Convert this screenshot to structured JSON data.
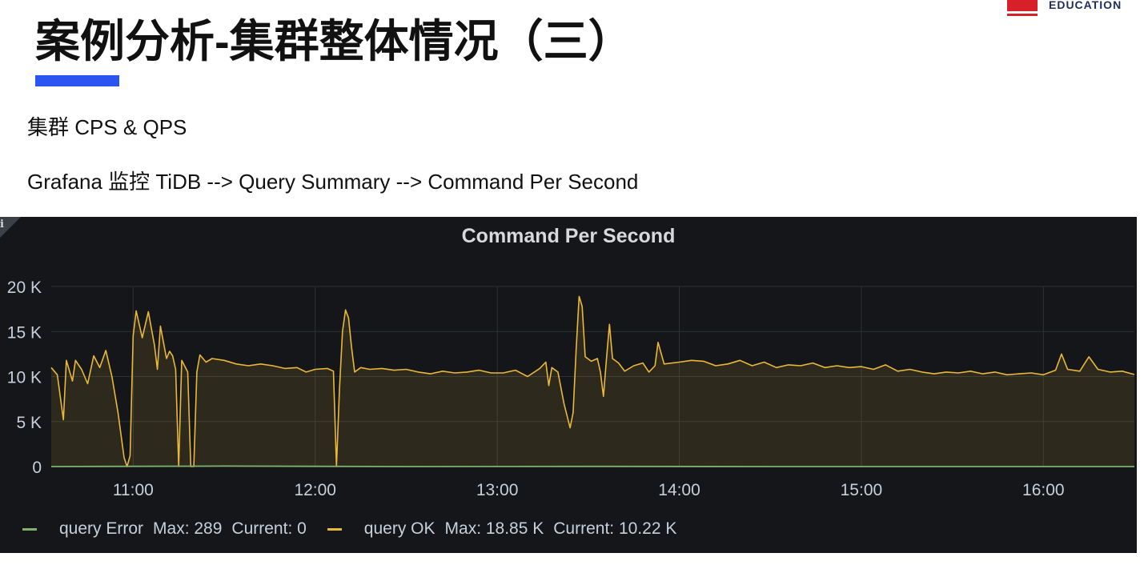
{
  "brand": {
    "text": "EDUCATION"
  },
  "slide": {
    "title": "案例分析-集群整体情况（三）",
    "subtitle": "集群 CPS & QPS",
    "path": "Grafana 监控 TiDB --> Query Summary --> Command Per Second"
  },
  "panel": {
    "title": "Command Per Second",
    "info_icon": "i"
  },
  "colors": {
    "accent_bar": "#2b55f0",
    "panel_bg": "#141619",
    "query_ok": "#eab839",
    "query_error": "#7eb26d",
    "grid": "#2c3235",
    "axis_text": "#c7d0d9"
  },
  "legend": [
    {
      "name": "query Error",
      "max_label": "Max: 289",
      "current_label": "Current: 0",
      "color": "#7eb26d"
    },
    {
      "name": "query OK",
      "max_label": "Max: 18.85 K",
      "current_label": "Current: 10.22 K",
      "color": "#eab839"
    }
  ],
  "chart_data": {
    "type": "area",
    "title": "Command Per Second",
    "xlabel": "",
    "ylabel": "",
    "xlim": [
      "10:33",
      "16:30"
    ],
    "ylim": [
      0,
      20000
    ],
    "y_ticks": [
      {
        "value": 0,
        "label": "0"
      },
      {
        "value": 5000,
        "label": "5 K"
      },
      {
        "value": 10000,
        "label": "10 K"
      },
      {
        "value": 15000,
        "label": "15 K"
      },
      {
        "value": 20000,
        "label": "20 K"
      }
    ],
    "x_ticks": [
      "11:00",
      "12:00",
      "13:00",
      "14:00",
      "15:00",
      "16:00"
    ],
    "grid": true,
    "legend_position": "bottom-left",
    "series": [
      {
        "name": "query OK",
        "max": 18850,
        "current": 10220,
        "points": [
          [
            "10:33",
            11000
          ],
          [
            "10:35",
            10200
          ],
          [
            "10:37",
            5200
          ],
          [
            "10:38",
            11800
          ],
          [
            "10:40",
            9500
          ],
          [
            "10:41",
            11800
          ],
          [
            "10:43",
            10800
          ],
          [
            "10:45",
            9200
          ],
          [
            "10:47",
            12300
          ],
          [
            "10:49",
            11000
          ],
          [
            "10:51",
            12900
          ],
          [
            "10:53",
            10000
          ],
          [
            "10:55",
            6000
          ],
          [
            "10:57",
            1000
          ],
          [
            "10:58",
            0
          ],
          [
            "10:59",
            1200
          ],
          [
            "11:00",
            14500
          ],
          [
            "11:01",
            17300
          ],
          [
            "11:03",
            14300
          ],
          [
            "11:05",
            17200
          ],
          [
            "11:07",
            13500
          ],
          [
            "11:08",
            10800
          ],
          [
            "11:09",
            15600
          ],
          [
            "11:11",
            12000
          ],
          [
            "11:12",
            12800
          ],
          [
            "11:13",
            12300
          ],
          [
            "11:14",
            10800
          ],
          [
            "11:15",
            0
          ],
          [
            "11:16",
            11800
          ],
          [
            "11:18",
            10500
          ],
          [
            "11:19",
            0
          ],
          [
            "11:20",
            0
          ],
          [
            "11:21",
            10500
          ],
          [
            "11:22",
            12400
          ],
          [
            "11:24",
            11600
          ],
          [
            "11:26",
            12000
          ],
          [
            "11:30",
            11800
          ],
          [
            "11:34",
            11400
          ],
          [
            "11:38",
            11200
          ],
          [
            "11:42",
            11400
          ],
          [
            "11:46",
            11200
          ],
          [
            "11:50",
            10900
          ],
          [
            "11:54",
            11000
          ],
          [
            "11:57",
            10500
          ],
          [
            "12:00",
            10800
          ],
          [
            "12:04",
            10900
          ],
          [
            "12:06",
            10600
          ],
          [
            "12:07",
            0
          ],
          [
            "12:08",
            8500
          ],
          [
            "12:09",
            15000
          ],
          [
            "12:10",
            17400
          ],
          [
            "12:11",
            16500
          ],
          [
            "12:12",
            13200
          ],
          [
            "12:13",
            10500
          ],
          [
            "12:15",
            11000
          ],
          [
            "12:18",
            10800
          ],
          [
            "12:22",
            10900
          ],
          [
            "12:26",
            10700
          ],
          [
            "12:30",
            10800
          ],
          [
            "12:34",
            10500
          ],
          [
            "12:38",
            10300
          ],
          [
            "12:42",
            10600
          ],
          [
            "12:46",
            10400
          ],
          [
            "12:50",
            10500
          ],
          [
            "12:54",
            10700
          ],
          [
            "12:58",
            10400
          ],
          [
            "13:02",
            10400
          ],
          [
            "13:06",
            10700
          ],
          [
            "13:10",
            10000
          ],
          [
            "13:14",
            10900
          ],
          [
            "13:16",
            11600
          ],
          [
            "13:17",
            9000
          ],
          [
            "13:18",
            11000
          ],
          [
            "13:20",
            10500
          ],
          [
            "13:22",
            7000
          ],
          [
            "13:24",
            4300
          ],
          [
            "13:25",
            6000
          ],
          [
            "13:26",
            13000
          ],
          [
            "13:27",
            18900
          ],
          [
            "13:28",
            17800
          ],
          [
            "13:29",
            12200
          ],
          [
            "13:31",
            11700
          ],
          [
            "13:33",
            12000
          ],
          [
            "13:34",
            10500
          ],
          [
            "13:35",
            7800
          ],
          [
            "13:36",
            12000
          ],
          [
            "13:37",
            15800
          ],
          [
            "13:38",
            12000
          ],
          [
            "13:40",
            11500
          ],
          [
            "13:42",
            10600
          ],
          [
            "13:45",
            11200
          ],
          [
            "13:48",
            11500
          ],
          [
            "13:50",
            10500
          ],
          [
            "13:52",
            11200
          ],
          [
            "13:53",
            13800
          ],
          [
            "13:55",
            11400
          ],
          [
            "14:00",
            11600
          ],
          [
            "14:04",
            11800
          ],
          [
            "14:08",
            11700
          ],
          [
            "14:12",
            11200
          ],
          [
            "14:16",
            11400
          ],
          [
            "14:20",
            11800
          ],
          [
            "14:24",
            11200
          ],
          [
            "14:28",
            11600
          ],
          [
            "14:32",
            11000
          ],
          [
            "14:36",
            11300
          ],
          [
            "14:40",
            11200
          ],
          [
            "14:44",
            11500
          ],
          [
            "14:48",
            11000
          ],
          [
            "14:52",
            11200
          ],
          [
            "14:56",
            11000
          ],
          [
            "15:00",
            11100
          ],
          [
            "15:04",
            10800
          ],
          [
            "15:08",
            11300
          ],
          [
            "15:12",
            10600
          ],
          [
            "15:16",
            10800
          ],
          [
            "15:20",
            10500
          ],
          [
            "15:24",
            10300
          ],
          [
            "15:28",
            10500
          ],
          [
            "15:32",
            10400
          ],
          [
            "15:36",
            10600
          ],
          [
            "15:40",
            10300
          ],
          [
            "15:44",
            10500
          ],
          [
            "15:48",
            10200
          ],
          [
            "15:52",
            10300
          ],
          [
            "15:56",
            10400
          ],
          [
            "16:00",
            10200
          ],
          [
            "16:04",
            10700
          ],
          [
            "16:06",
            12500
          ],
          [
            "16:08",
            10800
          ],
          [
            "16:12",
            10600
          ],
          [
            "16:15",
            12200
          ],
          [
            "16:18",
            10800
          ],
          [
            "16:22",
            10500
          ],
          [
            "16:26",
            10600
          ],
          [
            "16:30",
            10220
          ]
        ]
      },
      {
        "name": "query Error",
        "max": 289,
        "current": 0,
        "points": [
          [
            "10:33",
            0
          ],
          [
            "11:30",
            50
          ],
          [
            "12:30",
            0
          ],
          [
            "13:30",
            20
          ],
          [
            "14:30",
            0
          ],
          [
            "15:30",
            0
          ],
          [
            "16:30",
            0
          ]
        ]
      }
    ]
  }
}
